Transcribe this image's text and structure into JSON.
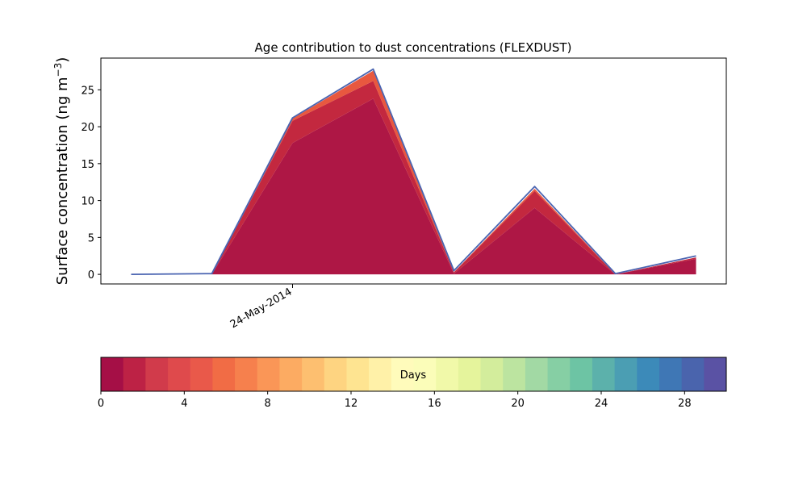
{
  "chart_data": [
    {
      "type": "area",
      "title": "Age contribution to dust concentrations (FLEXDUST)",
      "ylabel_main": "Surface concentration (ng m",
      "ylabel_exp": "−3",
      "ylabel_close": ")",
      "xlabel": "",
      "x_dates": [
        "22-May-2014",
        "23-May-2014",
        "24-May-2014",
        "25-May-2014",
        "26-May-2014",
        "27-May-2014",
        "28-May-2014",
        "29-May-2014"
      ],
      "x_tick_labels": [
        {
          "date": "24-May-2014",
          "label": "24-May-2014"
        }
      ],
      "x_range_dates": [
        "21-May-2014 15:00",
        "29-May-2014 09:00"
      ],
      "y_range": [
        -1.3,
        29.3
      ],
      "y_ticks": [
        0,
        5,
        10,
        15,
        20,
        25
      ],
      "stack_colors": [
        "#ae1745",
        "#c3283f",
        "#e8583f"
      ],
      "stacked_series": [
        {
          "values": [
            0,
            0,
            17.8,
            23.8,
            0.1,
            9.0,
            0,
            2.1
          ]
        },
        {
          "values": [
            0,
            0,
            3.0,
            2.4,
            0.2,
            2.3,
            0,
            0.2
          ]
        },
        {
          "values": [
            0,
            0,
            0.3,
            1.4,
            0,
            0.3,
            0,
            0
          ]
        }
      ],
      "total_line": {
        "color": "#4a64b1",
        "values": [
          0,
          0.1,
          21.2,
          27.8,
          0.5,
          11.9,
          0.1,
          2.5
        ]
      },
      "grid": false,
      "legend": "none"
    },
    {
      "type": "colorbar",
      "label": "Days",
      "range": [
        0,
        30
      ],
      "ticks": [
        0,
        4,
        8,
        12,
        16,
        20,
        24,
        28
      ],
      "colors": [
        "#a50f46",
        "#bd2245",
        "#d13b4b",
        "#df4a4c",
        "#e9594a",
        "#f16c45",
        "#f6804d",
        "#fa9657",
        "#fcab62",
        "#fdbf70",
        "#fed481",
        "#fee491",
        "#fff1a8",
        "#fffbbb",
        "#fbfdb9",
        "#f1f9a9",
        "#e5f49c",
        "#d3ed9c",
        "#bce4a0",
        "#a2d9a4",
        "#86cfa4",
        "#6dc4a4",
        "#5cb1ab",
        "#4b9eb3",
        "#3c8ab9",
        "#3f77b5",
        "#4a64ad",
        "#5a52a4"
      ]
    }
  ]
}
